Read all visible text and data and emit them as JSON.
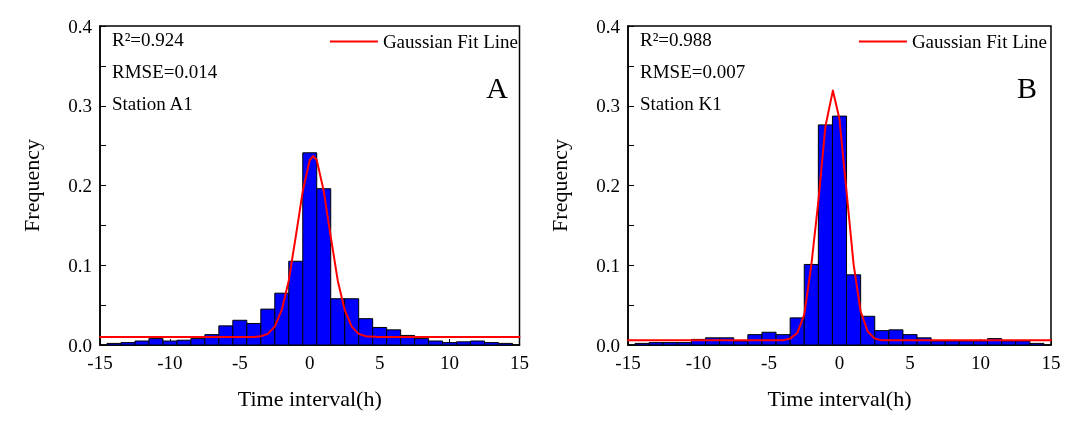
{
  "chart_data": [
    {
      "type": "histogram",
      "xlabel": "Time interval(h)",
      "ylabel": "Frequency",
      "annotations": [
        "R²=0.924",
        "RMSE=0.014",
        "Station A1",
        "A"
      ],
      "xlim": [
        -15,
        15
      ],
      "xticks": [
        -15,
        -10,
        -5,
        0,
        5,
        10,
        15
      ],
      "ylim": [
        0,
        0.4
      ],
      "yticks": [
        {
          "value": 0,
          "label": "0.0"
        },
        {
          "value": 0.05,
          "label": null
        },
        0.1,
        {
          "value": 0.15,
          "label": null
        },
        0.2,
        {
          "value": 0.25,
          "label": null
        },
        0.3,
        {
          "value": 0.35,
          "label": null
        },
        0.4
      ],
      "grid": false,
      "legend": "top right",
      "series": [
        {
          "color": "#0000ff",
          "bins": [
            -14.5,
            -13.5,
            -12.5,
            -11.5,
            -10.5,
            -9.5,
            -8.5,
            -7.5,
            -6.5,
            -5.5,
            -4.5,
            -3.5,
            -2.5,
            -1.5,
            -0.5,
            0.5,
            1.5,
            2.5,
            3.5,
            4.5,
            5.5,
            6.5,
            7.5,
            8.5,
            9.5,
            10.5,
            11.5,
            12.5,
            13.5,
            14.5
          ],
          "values": [
            0.002,
            0.003,
            0.005,
            0.008,
            0.005,
            0.006,
            0.008,
            0.013,
            0.024,
            0.031,
            0.027,
            0.045,
            0.065,
            0.105,
            0.241,
            0.196,
            0.058,
            0.058,
            0.033,
            0.022,
            0.019,
            0.012,
            0.008,
            0.005,
            0.003,
            0.004,
            0.005,
            0.003,
            0.002
          ]
        },
        {
          "type": "line",
          "name": "Gaussian Fit Line",
          "color": "#ff0000",
          "marker": "none",
          "line_style": "solid",
          "x": [
            -15,
            -4,
            -3.5,
            -3,
            -2.5,
            -2,
            -1.5,
            -1,
            -0.5,
            0,
            0.25,
            0.5,
            1,
            1.5,
            2,
            2.5,
            3,
            3.5,
            4,
            5,
            15
          ],
          "values": [
            0.01,
            0.01,
            0.011,
            0.014,
            0.023,
            0.044,
            0.081,
            0.136,
            0.193,
            0.232,
            0.237,
            0.232,
            0.193,
            0.136,
            0.081,
            0.044,
            0.023,
            0.014,
            0.011,
            0.01,
            0.01
          ]
        }
      ]
    },
    {
      "type": "histogram",
      "xlabel": "Time interval(h)",
      "ylabel": "Frequency",
      "annotations": [
        "R²=0.988",
        "RMSE=0.007",
        "Station K1",
        "B"
      ],
      "xlim": [
        -15,
        15
      ],
      "xticks": [
        -15,
        -10,
        -5,
        0,
        5,
        10,
        15
      ],
      "ylim": [
        0,
        0.4
      ],
      "yticks": [
        {
          "value": 0,
          "label": "0.0"
        },
        {
          "value": 0.05,
          "label": null
        },
        0.1,
        {
          "value": 0.15,
          "label": null
        },
        0.2,
        {
          "value": 0.25,
          "label": null
        },
        0.3,
        {
          "value": 0.35,
          "label": null
        },
        0.4
      ],
      "grid": false,
      "legend": "top right",
      "series": [
        {
          "color": "#0000ff",
          "bins": [
            -14.5,
            -13.5,
            -12.5,
            -11.5,
            -10.5,
            -9.5,
            -8.5,
            -7.5,
            -6.5,
            -5.5,
            -4.5,
            -3.5,
            -2.5,
            -1.5,
            -0.5,
            0.5,
            1.5,
            2.5,
            3.5,
            4.5,
            5.5,
            6.5,
            7.5,
            8.5,
            9.5,
            10.5,
            11.5,
            12.5,
            13.5,
            14.5
          ],
          "values": [
            0.002,
            0.003,
            0.003,
            0.003,
            0.007,
            0.009,
            0.009,
            0.005,
            0.013,
            0.016,
            0.013,
            0.034,
            0.101,
            0.276,
            0.287,
            0.088,
            0.036,
            0.018,
            0.019,
            0.013,
            0.009,
            0.005,
            0.005,
            0.005,
            0.005,
            0.008,
            0.005,
            0.005,
            0.002
          ]
        },
        {
          "type": "line",
          "name": "Gaussian Fit Line",
          "color": "#ff0000",
          "marker": "none",
          "line_style": "solid",
          "x": [
            -15,
            -4,
            -3.5,
            -3,
            -2.5,
            -2,
            -1.5,
            -1,
            -0.47,
            0,
            0.5,
            1,
            1.5,
            2,
            2.5,
            3,
            15
          ],
          "values": [
            0.006,
            0.006,
            0.008,
            0.015,
            0.038,
            0.1,
            0.18,
            0.274,
            0.319,
            0.283,
            0.192,
            0.101,
            0.042,
            0.017,
            0.008,
            0.006,
            0.006
          ]
        }
      ]
    }
  ]
}
